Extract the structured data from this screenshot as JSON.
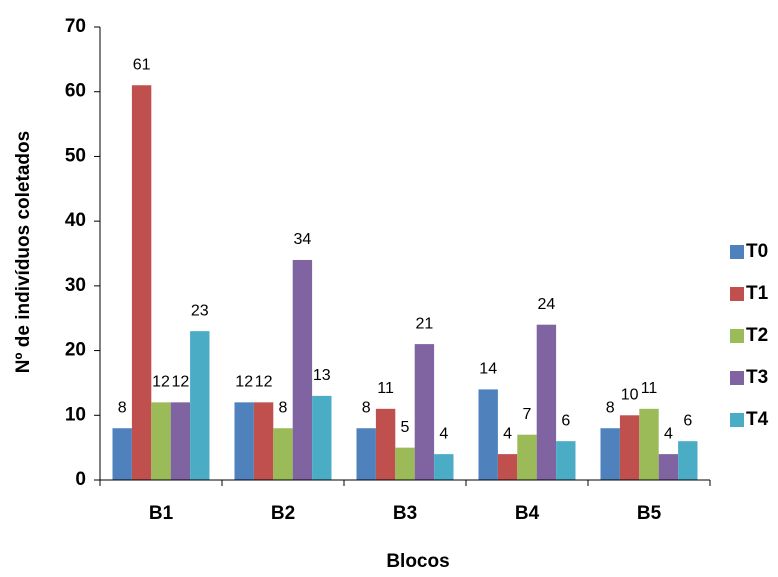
{
  "chart_data": {
    "type": "bar",
    "x_label": "Blocos",
    "y_label": "Nº de indivíduos coletados",
    "categories": [
      "B1",
      "B2",
      "B3",
      "B4",
      "B5"
    ],
    "series": [
      {
        "name": "T0",
        "color": "#4f81bd",
        "values": [
          8,
          12,
          8,
          14,
          8
        ]
      },
      {
        "name": "T1",
        "color": "#c0504d",
        "values": [
          61,
          12,
          11,
          4,
          10
        ]
      },
      {
        "name": "T2",
        "color": "#9bbb59",
        "values": [
          12,
          8,
          5,
          7,
          11
        ]
      },
      {
        "name": "T3",
        "color": "#8064a2",
        "values": [
          12,
          34,
          21,
          24,
          4
        ]
      },
      {
        "name": "T4",
        "color": "#4bacc6",
        "values": [
          23,
          13,
          4,
          6,
          6
        ]
      }
    ],
    "ylim": [
      0,
      70
    ],
    "yticks": [
      0,
      10,
      20,
      30,
      40,
      50,
      60,
      70
    ],
    "grid": false,
    "legend": "right"
  }
}
